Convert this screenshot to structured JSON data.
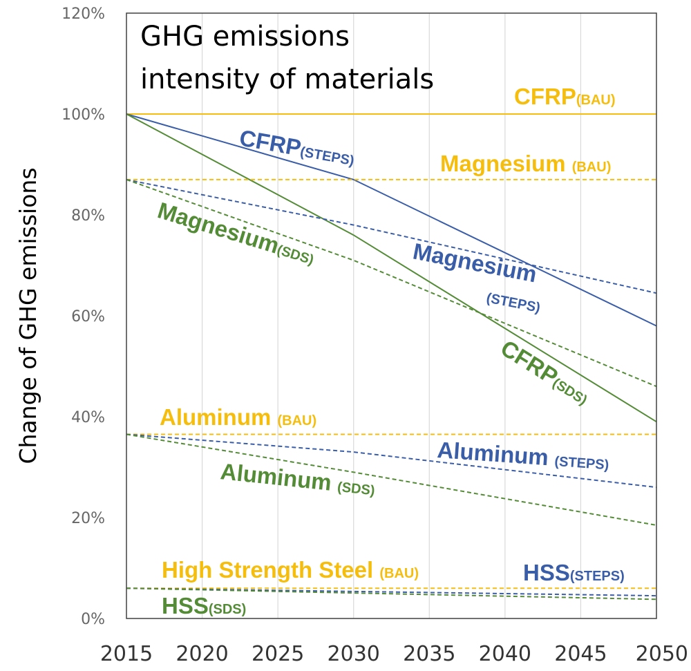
{
  "colors": {
    "bau": "#F5BE0F",
    "steps": "#3A5DA8",
    "sds": "#548B36",
    "grid": "#d9d9d9",
    "axis": "#404040"
  },
  "chart_data": {
    "type": "line",
    "title_lines": [
      "GHG emissions",
      "intensity of materials"
    ],
    "xlabel": "",
    "ylabel": "Change of GHG emissions",
    "xlim": [
      2015,
      2050
    ],
    "ylim": [
      0,
      120
    ],
    "x_ticks": [
      "2015",
      "2020",
      "2025",
      "2030",
      "2035",
      "2040",
      "2045",
      "2050"
    ],
    "x_tick_values": [
      2015,
      2020,
      2025,
      2030,
      2035,
      2040,
      2045,
      2050
    ],
    "y_ticks": [
      "0%",
      "20%",
      "40%",
      "60%",
      "80%",
      "100%",
      "120%"
    ],
    "y_tick_values": [
      0,
      20,
      40,
      60,
      80,
      100,
      120
    ],
    "grid": "vertical",
    "series": [
      {
        "name": "CFRP (BAU)",
        "color": "bau",
        "dash": "solid",
        "x": [
          2015,
          2050
        ],
        "values": [
          100,
          100
        ]
      },
      {
        "name": "CFRP (STEPS)",
        "color": "steps",
        "dash": "solid",
        "x": [
          2015,
          2030,
          2050
        ],
        "values": [
          100,
          87,
          58
        ]
      },
      {
        "name": "CFRP (SDS)",
        "color": "sds",
        "dash": "solid",
        "x": [
          2015,
          2030,
          2050
        ],
        "values": [
          100,
          76,
          39
        ]
      },
      {
        "name": "Magnesium (BAU)",
        "color": "bau",
        "dash": "dashed",
        "x": [
          2015,
          2050
        ],
        "values": [
          87,
          87
        ]
      },
      {
        "name": "Magnesium (STEPS)",
        "color": "steps",
        "dash": "dashed",
        "x": [
          2015,
          2030,
          2050
        ],
        "values": [
          87,
          78,
          64.5
        ]
      },
      {
        "name": "Magnesium (SDS)",
        "color": "sds",
        "dash": "dashed",
        "x": [
          2015,
          2030,
          2050
        ],
        "values": [
          87,
          71,
          46
        ]
      },
      {
        "name": "Aluminum (BAU)",
        "color": "bau",
        "dash": "dashed",
        "x": [
          2015,
          2050
        ],
        "values": [
          36.5,
          36.5
        ]
      },
      {
        "name": "Aluminum (STEPS)",
        "color": "steps",
        "dash": "dashed",
        "x": [
          2015,
          2030,
          2050
        ],
        "values": [
          36.5,
          33,
          26
        ]
      },
      {
        "name": "Aluminum (SDS)",
        "color": "sds",
        "dash": "dashed",
        "x": [
          2015,
          2030,
          2050
        ],
        "values": [
          36.5,
          29,
          18.5
        ]
      },
      {
        "name": "High Strength Steel (BAU)",
        "color": "bau",
        "dash": "dashed",
        "x": [
          2015,
          2050
        ],
        "values": [
          6,
          6
        ]
      },
      {
        "name": "HSS (STEPS)",
        "color": "steps",
        "dash": "dashed",
        "x": [
          2015,
          2050
        ],
        "values": [
          6,
          4.5
        ]
      },
      {
        "name": "HSS (SDS)",
        "color": "sds",
        "dash": "dashed",
        "x": [
          2015,
          2050
        ],
        "values": [
          6,
          3.8
        ]
      }
    ],
    "annotations": {
      "cfrp_bau": {
        "main": "CFRP",
        "sub": "(BAU)"
      },
      "cfrp_steps": {
        "main": "CFRP",
        "sub": "(STEPS)"
      },
      "cfrp_sds": {
        "main": "CFRP",
        "sub": "(SDS)"
      },
      "mg_bau": {
        "main": "Magnesium ",
        "sub": "(BAU)"
      },
      "mg_steps_main": {
        "main": "Magnesium"
      },
      "mg_steps_sub": {
        "sub": "(STEPS)"
      },
      "mg_sds": {
        "main": "Magnesium",
        "sub": "(SDS)"
      },
      "al_bau": {
        "main": "Aluminum ",
        "sub": "(BAU)"
      },
      "al_steps": {
        "main": "Aluminum ",
        "sub": "(STEPS)"
      },
      "al_sds": {
        "main": "Aluminum ",
        "sub": "(SDS)"
      },
      "hss_bau": {
        "main": "High Strength Steel ",
        "sub": "(BAU)"
      },
      "hss_steps": {
        "main": "HSS",
        "sub": "(STEPS)"
      },
      "hss_sds": {
        "main": "HSS",
        "sub": "(SDS)"
      }
    }
  }
}
